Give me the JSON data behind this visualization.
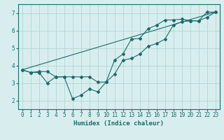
{
  "xlabel": "Humidex (Indice chaleur)",
  "ylabel": "",
  "bg_color": "#d8eeee",
  "grid_color": "#b8d8d8",
  "line_color": "#1a6b6b",
  "xlim": [
    -0.5,
    23.5
  ],
  "ylim": [
    1.5,
    7.5
  ],
  "xticks": [
    0,
    1,
    2,
    3,
    4,
    5,
    6,
    7,
    8,
    9,
    10,
    11,
    12,
    13,
    14,
    15,
    16,
    17,
    18,
    19,
    20,
    21,
    22,
    23
  ],
  "yticks": [
    2,
    3,
    4,
    5,
    6,
    7
  ],
  "line1_x": [
    0,
    1,
    2,
    3,
    4,
    5,
    6,
    7,
    8,
    9,
    10,
    11,
    12,
    13,
    14,
    15,
    16,
    17,
    18,
    19,
    20,
    21,
    22,
    23
  ],
  "line1_y": [
    3.75,
    3.6,
    3.6,
    3.0,
    3.35,
    3.35,
    2.1,
    2.3,
    2.65,
    2.5,
    3.05,
    3.5,
    4.3,
    4.4,
    4.65,
    5.1,
    5.25,
    5.5,
    6.3,
    6.5,
    6.55,
    6.55,
    6.75,
    7.05
  ],
  "line2_x": [
    0,
    1,
    2,
    3,
    4,
    5,
    6,
    7,
    8,
    9,
    10,
    11,
    12,
    13,
    14,
    15,
    16,
    17,
    18,
    19,
    20,
    21,
    22,
    23
  ],
  "line2_y": [
    3.75,
    3.6,
    3.65,
    3.65,
    3.35,
    3.35,
    3.35,
    3.35,
    3.35,
    3.05,
    3.05,
    4.3,
    4.65,
    5.5,
    5.55,
    6.1,
    6.3,
    6.6,
    6.6,
    6.65,
    6.55,
    6.55,
    7.05,
    7.05
  ],
  "line3_x": [
    0,
    23
  ],
  "line3_y": [
    3.75,
    7.05
  ],
  "xlabel_fontsize": 6.5,
  "tick_fontsize": 5.5
}
